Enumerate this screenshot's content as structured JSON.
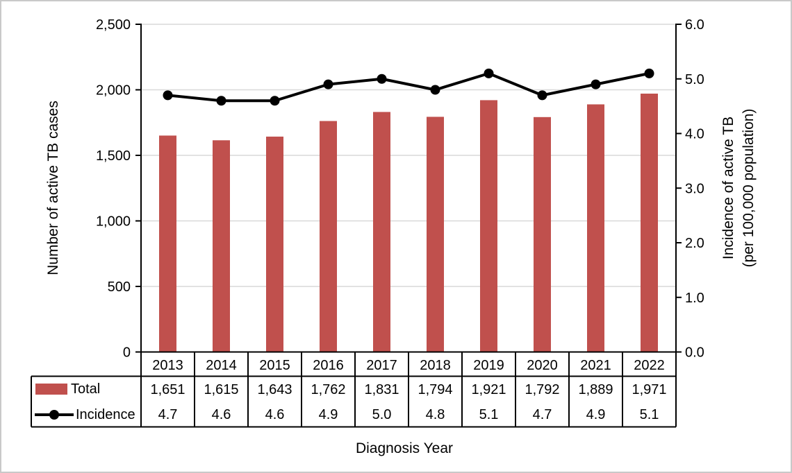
{
  "chart_data": {
    "type": "combo-bar-line",
    "categories": [
      "2013",
      "2014",
      "2015",
      "2016",
      "2017",
      "2018",
      "2019",
      "2020",
      "2021",
      "2022"
    ],
    "xlabel": "Diagnosis Year",
    "grid": true,
    "legend_position": "data-table-left",
    "left_axis": {
      "title": "Number of active TB cases",
      "ticks": [
        "2,500",
        "2,000",
        "1,500",
        "1,000",
        "500",
        "0"
      ],
      "range": [
        0,
        2500
      ]
    },
    "right_axis": {
      "title_line1": "Incidence of active TB",
      "title_line2": "(per 100,000 population)",
      "ticks": [
        "6.0",
        "5.0",
        "4.0",
        "3.0",
        "2.0",
        "1.0",
        "0.0"
      ],
      "range": [
        0,
        6
      ]
    },
    "series": [
      {
        "name": "Total",
        "type": "bar",
        "axis": "left",
        "color": "#C0504D",
        "values": [
          1651,
          1615,
          1643,
          1762,
          1831,
          1794,
          1921,
          1792,
          1889,
          1971
        ],
        "labels": [
          "1,651",
          "1,615",
          "1,643",
          "1,762",
          "1,831",
          "1,794",
          "1,921",
          "1,792",
          "1,889",
          "1,971"
        ]
      },
      {
        "name": "Incidence",
        "type": "line",
        "axis": "right",
        "color": "#000000",
        "values": [
          4.7,
          4.6,
          4.6,
          4.9,
          5.0,
          4.8,
          5.1,
          4.7,
          4.9,
          5.1
        ],
        "labels": [
          "4.7",
          "4.6",
          "4.6",
          "4.9",
          "5.0",
          "4.8",
          "5.1",
          "4.7",
          "4.9",
          "5.1"
        ]
      }
    ],
    "colors": {
      "gridline": "#D9D9D9",
      "axis": "#000000",
      "figure_border": "#C9C9C9",
      "background": "#FFFFFF"
    }
  }
}
